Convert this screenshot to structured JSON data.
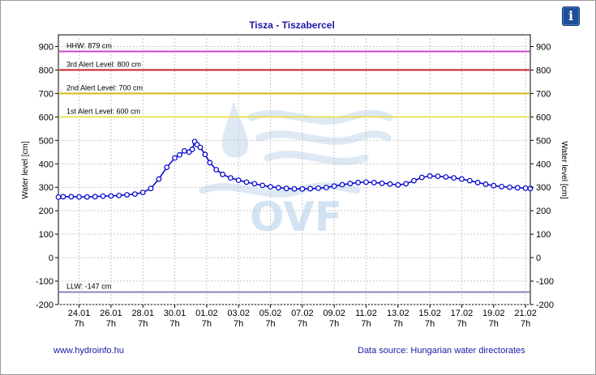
{
  "chart_data": {
    "type": "line",
    "title": "Tisza - Tiszabercel",
    "ylabel_left": "Water level [cm]",
    "ylabel_right": "Water level [cm]",
    "ylim": [
      -200,
      950
    ],
    "yticks": [
      -200,
      -100,
      0,
      100,
      200,
      300,
      400,
      500,
      600,
      700,
      800,
      900
    ],
    "xlim": [
      -0.3,
      29.3
    ],
    "xticks": [
      {
        "x": 1,
        "date": "24.01",
        "hour": "7h"
      },
      {
        "x": 3,
        "date": "26.01",
        "hour": "7h"
      },
      {
        "x": 5,
        "date": "28.01",
        "hour": "7h"
      },
      {
        "x": 7,
        "date": "30.01",
        "hour": "7h"
      },
      {
        "x": 9,
        "date": "01.02",
        "hour": "7h"
      },
      {
        "x": 11,
        "date": "03.02",
        "hour": "7h"
      },
      {
        "x": 13,
        "date": "05.02",
        "hour": "7h"
      },
      {
        "x": 15,
        "date": "07.02",
        "hour": "7h"
      },
      {
        "x": 17,
        "date": "09.02",
        "hour": "7h"
      },
      {
        "x": 19,
        "date": "11.02",
        "hour": "7h"
      },
      {
        "x": 21,
        "date": "13.02",
        "hour": "7h"
      },
      {
        "x": 23,
        "date": "15.02",
        "hour": "7h"
      },
      {
        "x": 25,
        "date": "17.02",
        "hour": "7h"
      },
      {
        "x": 27,
        "date": "19.02",
        "hour": "7h"
      },
      {
        "x": 29,
        "date": "21.02",
        "hour": "7h"
      }
    ],
    "reference_lines": [
      {
        "label": "HHW: 879 cm",
        "value": 879,
        "color": "#cc44cc"
      },
      {
        "label": "3rd Alert Level: 800 cm",
        "value": 800,
        "color": "#cc2222"
      },
      {
        "label": "2nd Alert Level: 700 cm",
        "value": 700,
        "color": "#d4b81c"
      },
      {
        "label": "1st Alert Level: 600 cm",
        "value": 600,
        "color": "#e8e060"
      },
      {
        "label": "LLW: -147 cm",
        "value": -147,
        "color": "#8888bb"
      }
    ],
    "series": [
      {
        "color": "#0000cc",
        "points": [
          [
            -0.3,
            258
          ],
          [
            0,
            260
          ],
          [
            0.5,
            260
          ],
          [
            1,
            259
          ],
          [
            1.5,
            259
          ],
          [
            2,
            260
          ],
          [
            2.5,
            262
          ],
          [
            3,
            263
          ],
          [
            3.5,
            265
          ],
          [
            4,
            268
          ],
          [
            4.5,
            271
          ],
          [
            5,
            278
          ],
          [
            5.5,
            295
          ],
          [
            6,
            335
          ],
          [
            6.5,
            385
          ],
          [
            7,
            425
          ],
          [
            7.3,
            438
          ],
          [
            7.6,
            455
          ],
          [
            7.9,
            450
          ],
          [
            8.1,
            462
          ],
          [
            8.25,
            495
          ],
          [
            8.4,
            482
          ],
          [
            8.6,
            470
          ],
          [
            8.9,
            440
          ],
          [
            9.2,
            405
          ],
          [
            9.6,
            375
          ],
          [
            10,
            355
          ],
          [
            10.5,
            340
          ],
          [
            11,
            330
          ],
          [
            11.5,
            322
          ],
          [
            12,
            315
          ],
          [
            12.5,
            308
          ],
          [
            13,
            302
          ],
          [
            13.5,
            298
          ],
          [
            14,
            295
          ],
          [
            14.5,
            293
          ],
          [
            15,
            293
          ],
          [
            15.5,
            294
          ],
          [
            16,
            296
          ],
          [
            16.5,
            299
          ],
          [
            17,
            305
          ],
          [
            17.5,
            311
          ],
          [
            18,
            316
          ],
          [
            18.5,
            320
          ],
          [
            19,
            322
          ],
          [
            19.5,
            320
          ],
          [
            20,
            317
          ],
          [
            20.5,
            314
          ],
          [
            21,
            310
          ],
          [
            21.5,
            315
          ],
          [
            22,
            328
          ],
          [
            22.5,
            342
          ],
          [
            23,
            348
          ],
          [
            23.5,
            347
          ],
          [
            24,
            344
          ],
          [
            24.5,
            340
          ],
          [
            25,
            335
          ],
          [
            25.5,
            328
          ],
          [
            26,
            320
          ],
          [
            26.5,
            313
          ],
          [
            27,
            307
          ],
          [
            27.5,
            303
          ],
          [
            28,
            300
          ],
          [
            28.5,
            298
          ],
          [
            29,
            296
          ],
          [
            29.3,
            295
          ]
        ]
      }
    ]
  },
  "footer": {
    "website": "www.hydroinfo.hu",
    "source": "Data source: Hungarian water directorates"
  },
  "watermark": {
    "text": "OVF"
  },
  "info_button": {
    "icon": "info-icon",
    "glyph": "i"
  }
}
